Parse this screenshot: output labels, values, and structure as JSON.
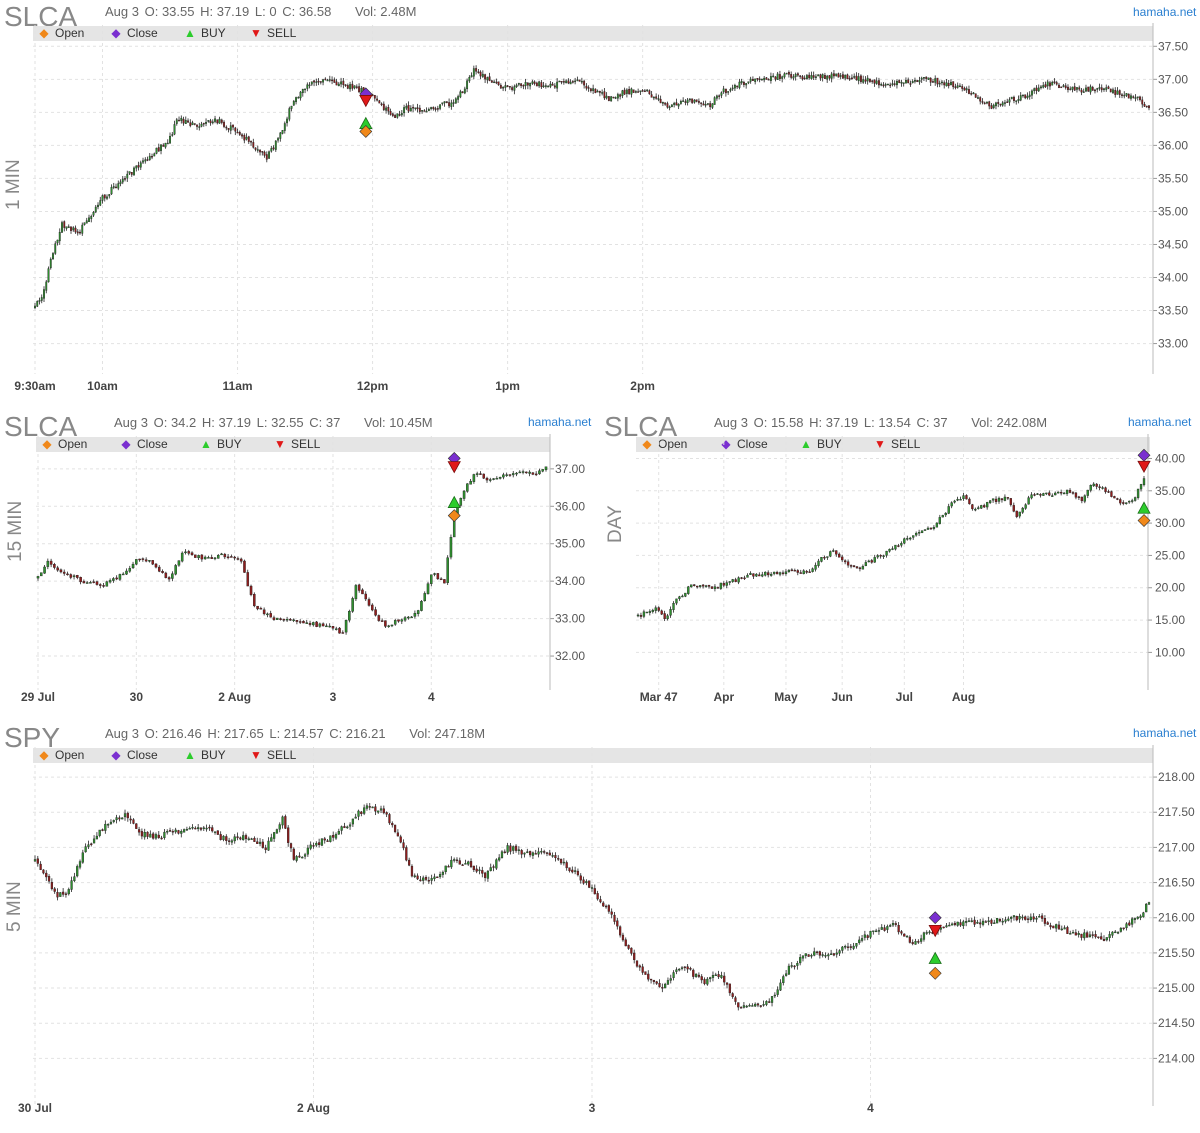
{
  "brand": "hamaha.net",
  "legend": {
    "open": "Open",
    "close": "Close",
    "buy": "BUY",
    "sell": "SELL",
    "colors": {
      "open": "#f0881a",
      "close": "#7a2fd0",
      "buy": "#2ccc2c",
      "sell": "#e01818"
    }
  },
  "chart_data": [
    {
      "type": "candlestick",
      "panel": "p1",
      "ticker": "SLCA",
      "timeframe": "1 MIN",
      "ohlc_text": {
        "date": "Aug 3",
        "open": "O: 33.55",
        "high": "H: 37.19",
        "low": "L: 0",
        "close": "C: 36.58",
        "volume": "Vol: 2.48M"
      },
      "ylim": [
        32.6,
        37.58
      ],
      "yticks": [
        "33.00",
        "33.50",
        "34.00",
        "34.50",
        "35.00",
        "35.50",
        "36.00",
        "36.50",
        "37.00",
        "37.50"
      ],
      "xticks": [
        "9:30am",
        "10am",
        "11am",
        "12pm",
        "1pm",
        "2pm"
      ],
      "path": [
        [
          0,
          33.55
        ],
        [
          4,
          33.8
        ],
        [
          8,
          34.4
        ],
        [
          12,
          34.8
        ],
        [
          20,
          34.7
        ],
        [
          30,
          35.2
        ],
        [
          40,
          35.5
        ],
        [
          50,
          35.8
        ],
        [
          60,
          36.1
        ],
        [
          63,
          36.4
        ],
        [
          70,
          36.3
        ],
        [
          80,
          36.4
        ],
        [
          90,
          36.2
        ],
        [
          97,
          36.0
        ],
        [
          103,
          35.8
        ],
        [
          108,
          36.1
        ],
        [
          115,
          36.7
        ],
        [
          125,
          37.0
        ],
        [
          140,
          36.9
        ],
        [
          150,
          36.75
        ],
        [
          155,
          36.55
        ],
        [
          160,
          36.45
        ],
        [
          165,
          36.55
        ],
        [
          175,
          36.55
        ],
        [
          185,
          36.65
        ],
        [
          190,
          36.8
        ],
        [
          195,
          37.15
        ],
        [
          202,
          37.0
        ],
        [
          210,
          36.85
        ],
        [
          220,
          36.95
        ],
        [
          230,
          36.9
        ],
        [
          240,
          37.0
        ],
        [
          245,
          36.9
        ],
        [
          255,
          36.7
        ],
        [
          262,
          36.8
        ],
        [
          270,
          36.85
        ],
        [
          280,
          36.6
        ],
        [
          290,
          36.7
        ],
        [
          300,
          36.6
        ],
        [
          305,
          36.8
        ],
        [
          315,
          36.95
        ],
        [
          330,
          37.05
        ],
        [
          345,
          37.05
        ],
        [
          360,
          37.05
        ],
        [
          375,
          36.95
        ],
        [
          385,
          36.95
        ],
        [
          395,
          37.0
        ],
        [
          405,
          36.95
        ],
        [
          415,
          36.8
        ],
        [
          425,
          36.6
        ],
        [
          440,
          36.75
        ],
        [
          450,
          36.95
        ],
        [
          460,
          36.85
        ],
        [
          475,
          36.85
        ],
        [
          490,
          36.7
        ],
        [
          495,
          36.58
        ]
      ],
      "total_bars": 496,
      "x_tick_bars": [
        0,
        30,
        90,
        150,
        210,
        270
      ],
      "markers": [
        {
          "kind": "close",
          "bar": 147,
          "price": 36.78
        },
        {
          "kind": "sell",
          "bar": 147,
          "price": 36.68
        },
        {
          "kind": "buy",
          "bar": 147,
          "price": 36.33
        },
        {
          "kind": "open",
          "bar": 147,
          "price": 36.21
        }
      ]
    },
    {
      "type": "candlestick",
      "panel": "p2",
      "ticker": "SLCA",
      "timeframe": "15 MIN",
      "ohlc_text": {
        "date": "Aug 3",
        "open": "O: 34.2",
        "high": "H: 37.19",
        "low": "L: 32.55",
        "close": "C: 37",
        "volume": "Vol: 10.45M"
      },
      "ylim": [
        31.2,
        37.45
      ],
      "yticks": [
        "32.00",
        "33.00",
        "34.00",
        "35.00",
        "36.00",
        "37.00"
      ],
      "xticks": [
        "29 Jul",
        "30",
        "2 Aug",
        "3",
        "4"
      ],
      "path": [
        [
          0,
          34.1
        ],
        [
          3,
          34.5
        ],
        [
          8,
          34.2
        ],
        [
          14,
          34.0
        ],
        [
          20,
          33.9
        ],
        [
          26,
          34.2
        ],
        [
          30,
          34.55
        ],
        [
          35,
          34.5
        ],
        [
          40,
          34.0
        ],
        [
          44,
          34.8
        ],
        [
          50,
          34.6
        ],
        [
          56,
          34.7
        ],
        [
          60,
          34.6
        ],
        [
          62,
          34.5
        ],
        [
          66,
          33.3
        ],
        [
          72,
          33.0
        ],
        [
          80,
          32.9
        ],
        [
          88,
          32.8
        ],
        [
          93,
          32.6
        ],
        [
          97,
          33.9
        ],
        [
          102,
          33.2
        ],
        [
          106,
          32.8
        ],
        [
          112,
          33.0
        ],
        [
          116,
          33.2
        ],
        [
          120,
          34.2
        ],
        [
          124,
          34.0
        ],
        [
          127,
          35.8
        ],
        [
          131,
          36.6
        ],
        [
          134,
          36.9
        ],
        [
          138,
          36.7
        ],
        [
          145,
          36.9
        ],
        [
          152,
          36.85
        ],
        [
          155,
          37.0
        ]
      ],
      "total_bars": 156,
      "x_tick_bars": [
        0,
        30,
        60,
        90,
        120
      ],
      "markers": [
        {
          "kind": "close",
          "bar": 127,
          "price": 37.28
        },
        {
          "kind": "sell",
          "bar": 127,
          "price": 37.06
        },
        {
          "kind": "buy",
          "bar": 127,
          "price": 36.1
        },
        {
          "kind": "open",
          "bar": 127,
          "price": 35.75
        }
      ]
    },
    {
      "type": "candlestick",
      "panel": "p3",
      "ticker": "SLCA",
      "timeframe": "DAY",
      "ohlc_text": {
        "date": "Aug 3",
        "open": "O: 15.58",
        "high": "H: 37.19",
        "low": "L: 13.54",
        "close": "C: 37",
        "volume": "Vol: 242.08M"
      },
      "ylim": [
        4.8,
        41.0
      ],
      "yticks": [
        "10.00",
        "15.00",
        "20.00",
        "25.00",
        "30.00",
        "35.00",
        "40.00"
      ],
      "xticks": [
        "Mar 47",
        "Apr",
        "May",
        "Jun",
        "Jul",
        "Aug"
      ],
      "path": [
        [
          0,
          15.6
        ],
        [
          6,
          16.8
        ],
        [
          9,
          15.0
        ],
        [
          12,
          17.5
        ],
        [
          18,
          20.5
        ],
        [
          25,
          20.0
        ],
        [
          32,
          21.0
        ],
        [
          38,
          22.0
        ],
        [
          45,
          22.2
        ],
        [
          52,
          22.5
        ],
        [
          58,
          22.5
        ],
        [
          62,
          24.5
        ],
        [
          66,
          25.8
        ],
        [
          70,
          24.0
        ],
        [
          74,
          23.0
        ],
        [
          80,
          24.5
        ],
        [
          86,
          26.0
        ],
        [
          92,
          28.0
        ],
        [
          100,
          29.5
        ],
        [
          106,
          33.0
        ],
        [
          110,
          34.0
        ],
        [
          114,
          32.0
        ],
        [
          120,
          33.5
        ],
        [
          125,
          34.0
        ],
        [
          128,
          31.0
        ],
        [
          133,
          34.5
        ],
        [
          140,
          34.5
        ],
        [
          145,
          35.0
        ],
        [
          150,
          33.5
        ],
        [
          153,
          36.0
        ],
        [
          158,
          35.0
        ],
        [
          164,
          33.0
        ],
        [
          168,
          34.0
        ],
        [
          171,
          37.0
        ]
      ],
      "total_bars": 172,
      "x_tick_bars": [
        7,
        29,
        50,
        69,
        90,
        110
      ],
      "markers": [
        {
          "kind": "close",
          "bar": 171,
          "price": 40.5
        },
        {
          "kind": "sell",
          "bar": 171,
          "price": 38.8
        },
        {
          "kind": "buy",
          "bar": 171,
          "price": 32.3
        },
        {
          "kind": "open",
          "bar": 171,
          "price": 30.4
        }
      ]
    },
    {
      "type": "candlestick",
      "panel": "p4",
      "ticker": "SPY",
      "timeframe": "5 MIN",
      "ohlc_text": {
        "date": "Aug 3",
        "open": "O: 216.46",
        "high": "H: 217.65",
        "low": "L: 214.57",
        "close": "C: 216.21",
        "volume": "Vol: 247.18M"
      },
      "ylim": [
        213.38,
        218.2
      ],
      "yticks": [
        "214.00",
        "214.50",
        "215.00",
        "215.50",
        "216.00",
        "216.50",
        "217.00",
        "217.50",
        "218.00"
      ],
      "xticks": [
        "30 Jul",
        "2 Aug",
        "3",
        "4"
      ],
      "path": [
        [
          0,
          216.8
        ],
        [
          4,
          216.6
        ],
        [
          8,
          216.3
        ],
        [
          12,
          216.4
        ],
        [
          18,
          217.0
        ],
        [
          25,
          217.3
        ],
        [
          32,
          217.45
        ],
        [
          38,
          217.2
        ],
        [
          44,
          217.15
        ],
        [
          52,
          217.25
        ],
        [
          60,
          217.3
        ],
        [
          68,
          217.1
        ],
        [
          74,
          217.15
        ],
        [
          82,
          217.0
        ],
        [
          88,
          217.4
        ],
        [
          92,
          216.8
        ],
        [
          98,
          217.0
        ],
        [
          105,
          217.15
        ],
        [
          112,
          217.35
        ],
        [
          118,
          217.6
        ],
        [
          124,
          217.5
        ],
        [
          130,
          217.1
        ],
        [
          134,
          216.6
        ],
        [
          140,
          216.5
        ],
        [
          148,
          216.8
        ],
        [
          155,
          216.75
        ],
        [
          160,
          216.6
        ],
        [
          168,
          217.0
        ],
        [
          175,
          216.9
        ],
        [
          182,
          216.95
        ],
        [
          190,
          216.7
        ],
        [
          196,
          216.5
        ],
        [
          204,
          216.1
        ],
        [
          210,
          215.6
        ],
        [
          216,
          215.2
        ],
        [
          222,
          215.0
        ],
        [
          230,
          215.3
        ],
        [
          238,
          215.1
        ],
        [
          244,
          215.2
        ],
        [
          250,
          214.7
        ],
        [
          256,
          214.75
        ],
        [
          262,
          214.85
        ],
        [
          268,
          215.3
        ],
        [
          276,
          215.5
        ],
        [
          282,
          215.45
        ],
        [
          290,
          215.6
        ],
        [
          298,
          215.8
        ],
        [
          305,
          215.9
        ],
        [
          312,
          215.65
        ],
        [
          320,
          215.85
        ],
        [
          328,
          215.9
        ],
        [
          338,
          215.95
        ],
        [
          348,
          216.0
        ],
        [
          356,
          216.0
        ],
        [
          364,
          215.85
        ],
        [
          372,
          215.75
        ],
        [
          380,
          215.7
        ],
        [
          386,
          215.85
        ],
        [
          392,
          216.0
        ],
        [
          396,
          216.21
        ]
      ],
      "total_bars": 397,
      "x_tick_bars": [
        0,
        99,
        198,
        297
      ],
      "markers": [
        {
          "kind": "close",
          "bar": 320,
          "price": 216.0
        },
        {
          "kind": "sell",
          "bar": 320,
          "price": 215.82
        },
        {
          "kind": "buy",
          "bar": 320,
          "price": 215.42
        },
        {
          "kind": "open",
          "bar": 320,
          "price": 215.21
        }
      ]
    }
  ]
}
